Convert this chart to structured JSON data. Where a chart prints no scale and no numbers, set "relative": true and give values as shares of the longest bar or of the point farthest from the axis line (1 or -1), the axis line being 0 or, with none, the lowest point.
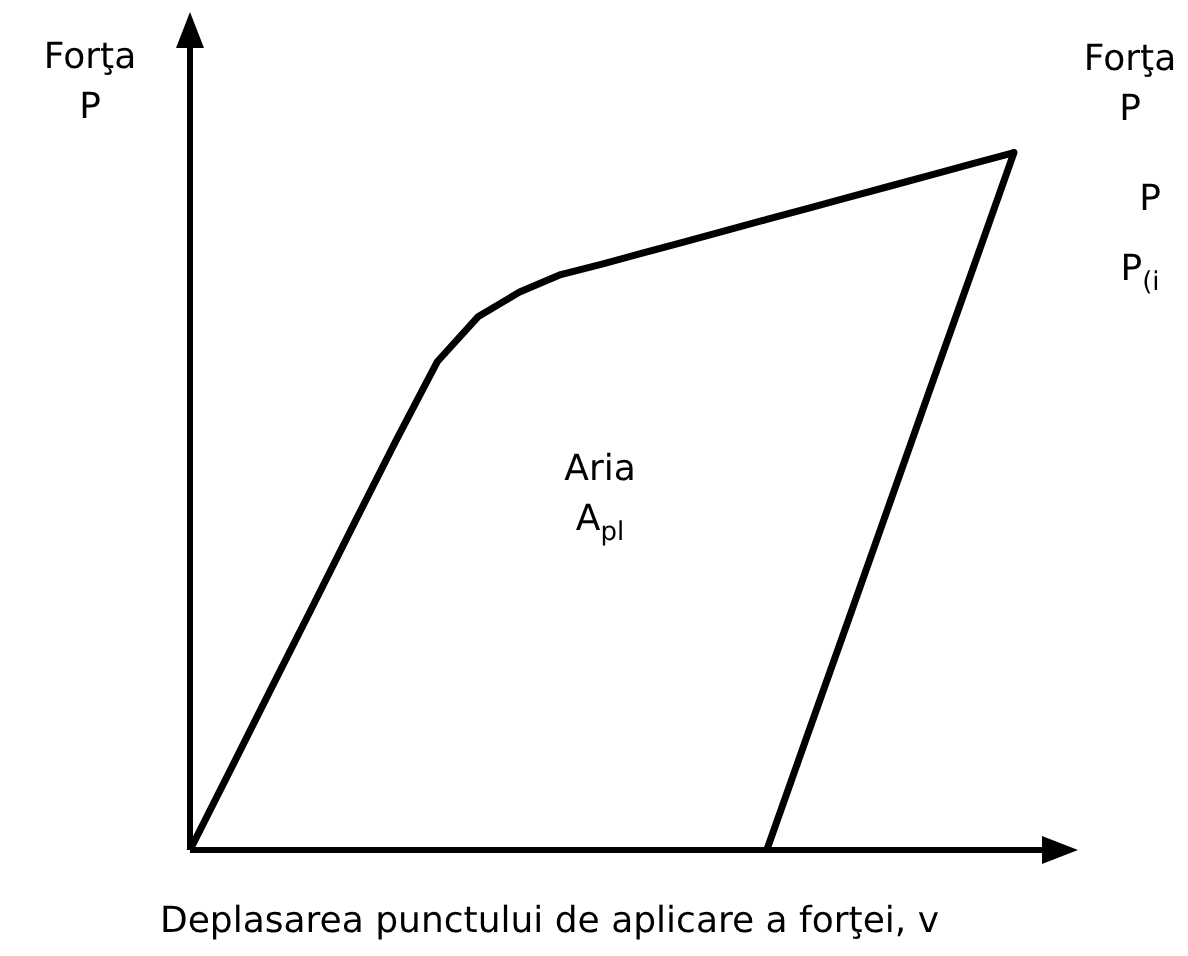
{
  "chart_data": {
    "type": "line",
    "relative": true,
    "xlabel": "Deplasarea punctului de aplicare a forţei, v",
    "ylabel": "Forţa P",
    "annotations": [
      "Aria A$_{pl}$",
      "Forţa P",
      "P",
      "P$_{(i}$"
    ],
    "categories": [
      null,
      null,
      null,
      null,
      null,
      null,
      null,
      null,
      null,
      null,
      null,
      null,
      null,
      null,
      null,
      null,
      null,
      null,
      null,
      null,
      null
    ],
    "series": [
      {
        "color": "#000000",
        "values": [
          0,
          0.117,
          0.235,
          0.352,
          0.47,
          0.587,
          0.7,
          0.765,
          0.8,
          0.825,
          0.84,
          0.856,
          0.872,
          0.888,
          0.904,
          0.92,
          0.936,
          0.952,
          0.968,
          0.984,
          1
        ]
      },
      {
        "color": "#000000",
        "values": [
          null,
          null,
          null,
          null,
          null,
          null,
          null,
          null,
          null,
          null,
          null,
          null,
          null,
          null,
          0,
          0.167,
          0.333,
          0.5,
          0.667,
          0.833,
          1
        ]
      }
    ],
    "marker": "none",
    "line_style": "solid"
  }
}
